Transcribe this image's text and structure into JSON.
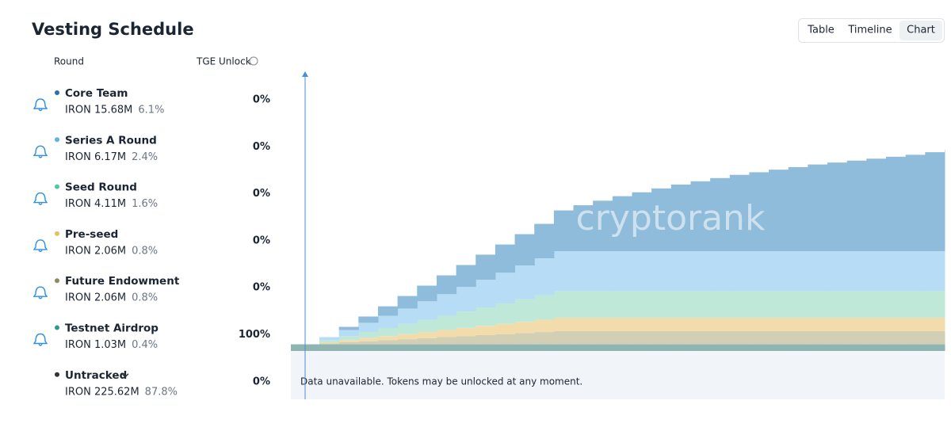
{
  "header": {
    "title": "Vesting Schedule"
  },
  "tabs": [
    "Table",
    "Timeline",
    "Chart"
  ],
  "table": {
    "columns": [
      "Round",
      "TGE Unlock"
    ],
    "rows": [
      {
        "name": "Core Team",
        "amount": "IRON 15.68M",
        "share": "6.1%",
        "tge_unlock": "0%",
        "color": "#2a6fb0"
      },
      {
        "name": "Series A Round",
        "amount": "IRON 6.17M",
        "share": "2.4%",
        "tge_unlock": "0%",
        "color": "#5ab4e6"
      },
      {
        "name": "Seed Round",
        "amount": "IRON 4.11M",
        "share": "1.6%",
        "tge_unlock": "0%",
        "color": "#4fc9a0"
      },
      {
        "name": "Pre-seed",
        "amount": "IRON 2.06M",
        "share": "0.8%",
        "tge_unlock": "0%",
        "color": "#e8c15a"
      },
      {
        "name": "Future Endowment",
        "amount": "IRON 2.06M",
        "share": "0.8%",
        "tge_unlock": "0%",
        "color": "#8c8c5a"
      },
      {
        "name": "Testnet Airdrop",
        "amount": "IRON 1.03M",
        "share": "0.4%",
        "tge_unlock": "100%",
        "color": "#2a9d8f"
      },
      {
        "name": "Untracked",
        "amount": "IRON 225.62M",
        "share": "87.8%",
        "tge_unlock": "0%",
        "color": "#333333"
      }
    ]
  },
  "note": "Data unavailable. Tokens may be unlocked at any moment.",
  "watermark": "cryptorank",
  "chart_data": {
    "type": "area",
    "categories": [
      null,
      null,
      null,
      null,
      null,
      null,
      null,
      null,
      null,
      null,
      null,
      null,
      null,
      null,
      null,
      null,
      null,
      null,
      null,
      null,
      null,
      null,
      null,
      null,
      null,
      null,
      null,
      null,
      null,
      null,
      null,
      null,
      null,
      null
    ],
    "series": [
      {
        "color": "#8fb5b3",
        "values": [
          1.03,
          1.03,
          1.03,
          1.03,
          1.03,
          1.03,
          1.03,
          1.03,
          1.03,
          1.03,
          1.03,
          1.03,
          1.03,
          1.03,
          1.03,
          1.03,
          1.03,
          1.03,
          1.03,
          1.03,
          1.03,
          1.03,
          1.03,
          1.03,
          1.03,
          1.03,
          1.03,
          1.03,
          1.03,
          1.03,
          1.03,
          1.03,
          1.03,
          1.03
        ]
      },
      {
        "color": "#d2cfb4",
        "values": [
          0,
          0.16,
          0.32,
          0.48,
          0.63,
          0.79,
          0.95,
          1.11,
          1.27,
          1.43,
          1.58,
          1.74,
          1.9,
          2.06,
          2.06,
          2.06,
          2.06,
          2.06,
          2.06,
          2.06,
          2.06,
          2.06,
          2.06,
          2.06,
          2.06,
          2.06,
          2.06,
          2.06,
          2.06,
          2.06,
          2.06,
          2.06,
          2.06,
          2.06
        ]
      },
      {
        "color": "#f2dcab",
        "values": [
          0,
          0.16,
          0.32,
          0.48,
          0.63,
          0.79,
          0.95,
          1.11,
          1.27,
          1.43,
          1.58,
          1.74,
          1.9,
          2.06,
          2.06,
          2.06,
          2.06,
          2.06,
          2.06,
          2.06,
          2.06,
          2.06,
          2.06,
          2.06,
          2.06,
          2.06,
          2.06,
          2.06,
          2.06,
          2.06,
          2.06,
          2.06,
          2.06,
          2.06
        ]
      },
      {
        "color": "#bfe8d8",
        "values": [
          0,
          0.32,
          0.63,
          0.95,
          1.26,
          1.58,
          1.9,
          2.21,
          2.53,
          2.85,
          3.16,
          3.48,
          3.79,
          4.11,
          4.11,
          4.11,
          4.11,
          4.11,
          4.11,
          4.11,
          4.11,
          4.11,
          4.11,
          4.11,
          4.11,
          4.11,
          4.11,
          4.11,
          4.11,
          4.11,
          4.11,
          4.11,
          4.11,
          4.11
        ]
      },
      {
        "color": "#b7dcf5",
        "values": [
          0,
          0.47,
          0.95,
          1.42,
          1.9,
          2.37,
          2.85,
          3.32,
          3.8,
          4.27,
          4.75,
          5.22,
          5.7,
          6.17,
          6.17,
          6.17,
          6.17,
          6.17,
          6.17,
          6.17,
          6.17,
          6.17,
          6.17,
          6.17,
          6.17,
          6.17,
          6.17,
          6.17,
          6.17,
          6.17,
          6.17,
          6.17,
          6.17,
          6.17
        ]
      },
      {
        "color": "#8fbcda",
        "values": [
          0,
          0,
          0.48,
          0.97,
          1.45,
          1.94,
          2.42,
          2.91,
          3.39,
          3.88,
          4.36,
          4.85,
          5.33,
          6.3,
          7.1,
          7.8,
          8.5,
          9.1,
          9.7,
          10.3,
          10.8,
          11.3,
          11.8,
          12.2,
          12.6,
          13.0,
          13.4,
          13.7,
          14.0,
          14.3,
          14.6,
          14.9,
          15.3,
          15.68
        ]
      }
    ]
  }
}
